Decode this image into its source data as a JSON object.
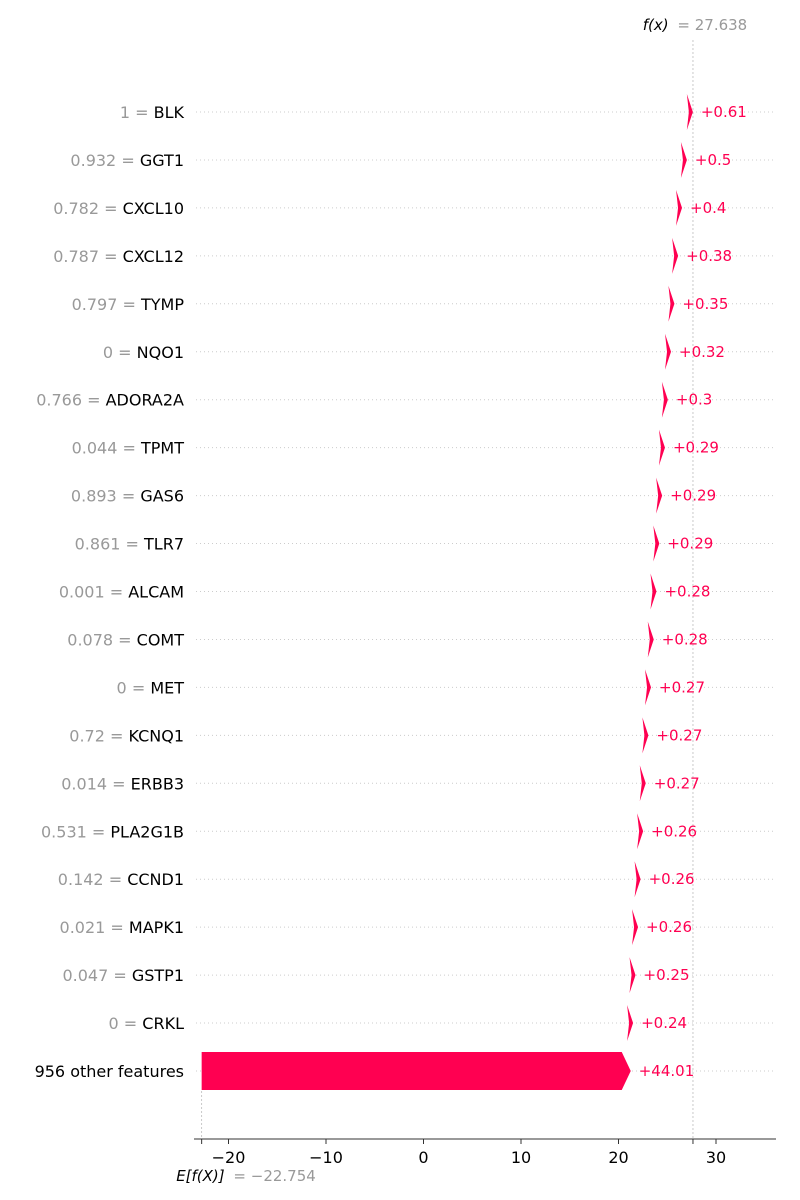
{
  "chart_data": {
    "type": "waterfall",
    "expected_value": {
      "label_prefix": "E[f(X)]",
      "label_value": "= −22.754",
      "value": -22.754
    },
    "output_value": {
      "label_prefix": "f(x)",
      "label_value": "= 27.638",
      "value": 27.638
    },
    "xlim": [
      -23.0,
      36.0
    ],
    "xticks": [
      {
        "value": -20,
        "label": "−20"
      },
      {
        "value": -10,
        "label": "−10"
      },
      {
        "value": 0,
        "label": "0"
      },
      {
        "value": 10,
        "label": "10"
      },
      {
        "value": 20,
        "label": "20"
      },
      {
        "value": 30,
        "label": "30"
      }
    ],
    "features": [
      {
        "value": "1",
        "name": "BLK",
        "contribution": 0.61,
        "label": "+0.61"
      },
      {
        "value": "0.932",
        "name": "GGT1",
        "contribution": 0.5,
        "label": "+0.5"
      },
      {
        "value": "0.782",
        "name": "CXCL10",
        "contribution": 0.4,
        "label": "+0.4"
      },
      {
        "value": "0.787",
        "name": "CXCL12",
        "contribution": 0.38,
        "label": "+0.38"
      },
      {
        "value": "0.797",
        "name": "TYMP",
        "contribution": 0.35,
        "label": "+0.35"
      },
      {
        "value": "0",
        "name": "NQO1",
        "contribution": 0.32,
        "label": "+0.32"
      },
      {
        "value": "0.766",
        "name": "ADORA2A",
        "contribution": 0.3,
        "label": "+0.3"
      },
      {
        "value": "0.044",
        "name": "TPMT",
        "contribution": 0.29,
        "label": "+0.29"
      },
      {
        "value": "0.893",
        "name": "GAS6",
        "contribution": 0.29,
        "label": "+0.29"
      },
      {
        "value": "0.861",
        "name": "TLR7",
        "contribution": 0.29,
        "label": "+0.29"
      },
      {
        "value": "0.001",
        "name": "ALCAM",
        "contribution": 0.28,
        "label": "+0.28"
      },
      {
        "value": "0.078",
        "name": "COMT",
        "contribution": 0.28,
        "label": "+0.28"
      },
      {
        "value": "0",
        "name": "MET",
        "contribution": 0.27,
        "label": "+0.27"
      },
      {
        "value": "0.72",
        "name": "KCNQ1",
        "contribution": 0.27,
        "label": "+0.27"
      },
      {
        "value": "0.014",
        "name": "ERBB3",
        "contribution": 0.27,
        "label": "+0.27"
      },
      {
        "value": "0.531",
        "name": "PLA2G1B",
        "contribution": 0.26,
        "label": "+0.26"
      },
      {
        "value": "0.142",
        "name": "CCND1",
        "contribution": 0.26,
        "label": "+0.26"
      },
      {
        "value": "0.021",
        "name": "MAPK1",
        "contribution": 0.26,
        "label": "+0.26"
      },
      {
        "value": "0.047",
        "name": "GSTP1",
        "contribution": 0.25,
        "label": "+0.25"
      },
      {
        "value": "0",
        "name": "CRKL",
        "contribution": 0.24,
        "label": "+0.24"
      },
      {
        "value": "",
        "name": "956 other features",
        "contribution": 44.01,
        "label": "+44.01"
      }
    ],
    "colors": {
      "positive": "#ff0051",
      "muted": "#999999",
      "text": "#000000",
      "axis": "#333333"
    }
  }
}
